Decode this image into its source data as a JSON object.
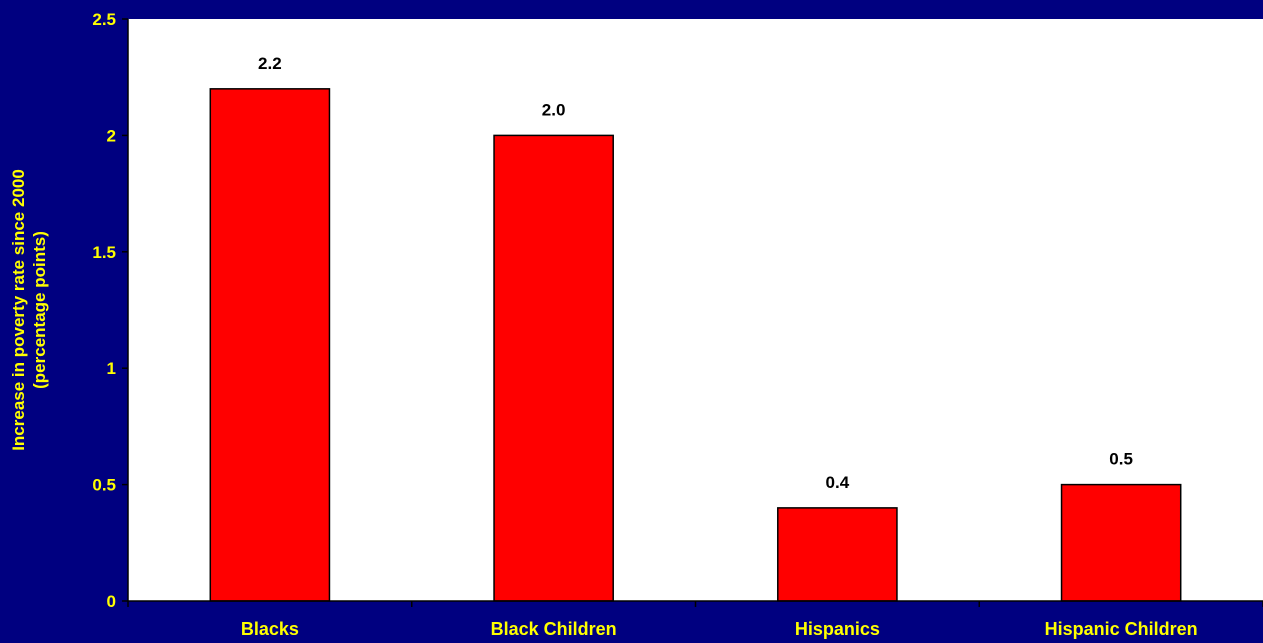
{
  "chart_data": {
    "type": "bar",
    "categories": [
      "Blacks",
      "Black Children",
      "Hispanics",
      "Hispanic Children"
    ],
    "values": [
      2.2,
      2.0,
      0.4,
      0.5
    ],
    "data_labels": [
      "2.2",
      "2.0",
      "0.4",
      "0.5"
    ],
    "ylabel_lines": [
      "Increase in poverty rate since 2000",
      "(percentage points)"
    ],
    "ylim": [
      0,
      2.5
    ],
    "yticks": [
      0,
      0.5,
      1,
      1.5,
      2,
      2.5
    ],
    "ytick_labels": [
      "0",
      "0.5",
      "1",
      "1.5",
      "2",
      "2.5"
    ],
    "grid": false,
    "legend": "none",
    "colors": {
      "background": "#000080",
      "plot_area": "#FFFFFF",
      "bar": "#FF0000",
      "bar_border": "#000000",
      "axis_text": "#FFFF00",
      "data_label_text": "#000000"
    }
  }
}
